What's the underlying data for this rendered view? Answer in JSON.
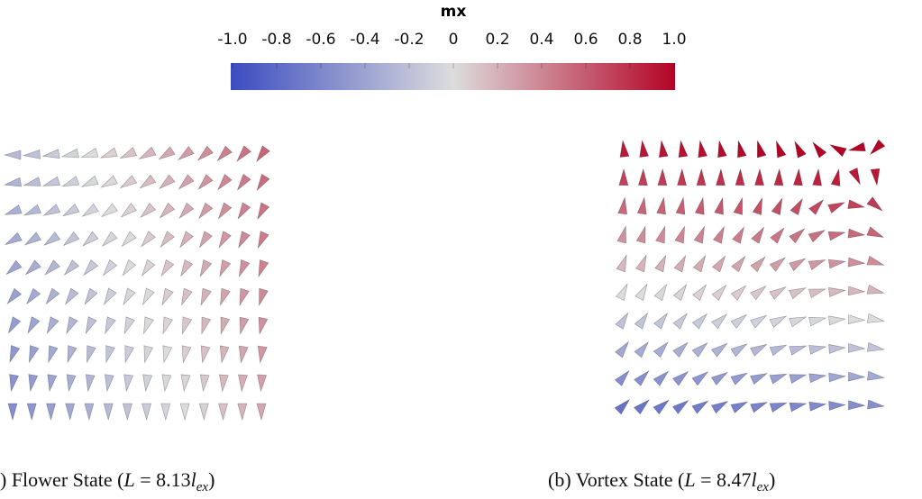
{
  "colorbar": {
    "title": "mx",
    "lim": [
      -1,
      1
    ],
    "ticks": [
      {
        "value": -1,
        "label": "-1.0"
      },
      -0.8,
      -0.6,
      -0.4,
      -0.2,
      0,
      0.2,
      0.4,
      0.6,
      0.8,
      {
        "value": 1,
        "label": "1.0"
      }
    ],
    "colors": [
      "#3b4cc0",
      "#dddddd",
      "#b40426"
    ]
  },
  "panels": [
    {
      "caption": {
        "prefix": ") Flower State (",
        "var": "L",
        "eq": " = 8.13",
        "var2": "l",
        "sub": "ex",
        "suffix": ")"
      }
    },
    {
      "caption": {
        "prefix": "(b) Vortex State (",
        "var": "L",
        "eq": " = 8.47",
        "var2": "l",
        "sub": "ex",
        "suffix": ")"
      }
    }
  ]
}
